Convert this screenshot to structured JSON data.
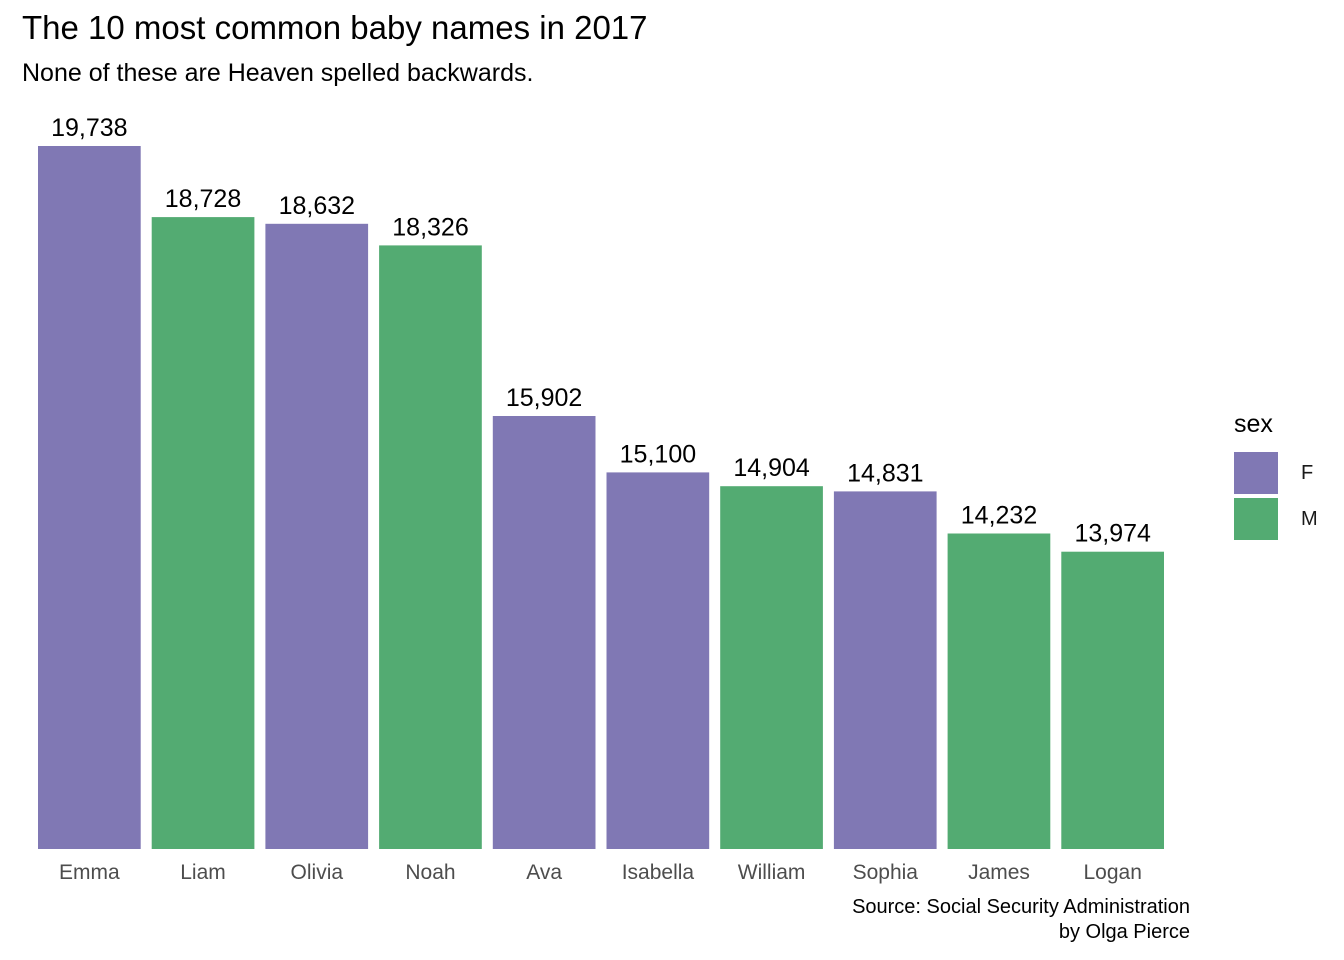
{
  "chart_data": {
    "type": "bar",
    "title": "The 10 most common baby names in 2017",
    "subtitle": "None of these are Heaven spelled backwards.",
    "xlabel": "",
    "ylabel": "",
    "categories": [
      "Emma",
      "Liam",
      "Olivia",
      "Noah",
      "Ava",
      "Isabella",
      "William",
      "Sophia",
      "James",
      "Logan"
    ],
    "values": [
      19738,
      18728,
      18632,
      18326,
      15902,
      15100,
      14904,
      14831,
      14232,
      13974
    ],
    "value_labels": [
      "19,738",
      "18,728",
      "18,632",
      "18,326",
      "15,902",
      "15,100",
      "14,904",
      "14,831",
      "14,232",
      "13,974"
    ],
    "sex": [
      "F",
      "M",
      "F",
      "M",
      "F",
      "F",
      "M",
      "F",
      "M",
      "M"
    ],
    "ylim": [
      9750,
      19738
    ],
    "grid": false,
    "legend": {
      "title": "sex",
      "position": "right",
      "entries": [
        {
          "label": "F",
          "color": "#8078B4"
        },
        {
          "label": "M",
          "color": "#53AB72"
        }
      ]
    },
    "caption": [
      "Source: Social Security Administration",
      "by Olga Pierce"
    ]
  }
}
